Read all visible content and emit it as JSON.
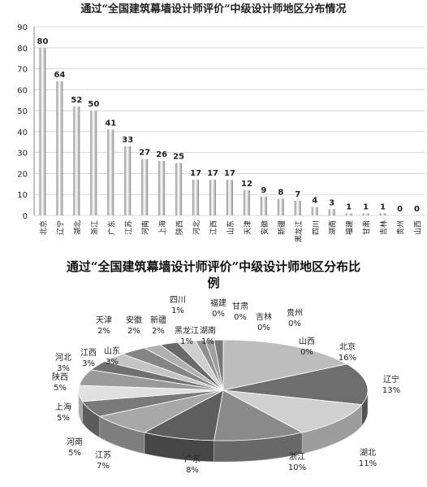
{
  "chart_data": [
    {
      "type": "bar",
      "title": "通过“全国建筑幕墙设计师评价”中级设计师地区分布情况",
      "categories": [
        "北京",
        "辽宁",
        "湖北",
        "浙江",
        "广东",
        "江苏",
        "河南",
        "上海",
        "陕西",
        "河北",
        "江西",
        "山东",
        "天津",
        "安徽",
        "新疆",
        "黑龙江",
        "四川",
        "湖南",
        "福建",
        "甘肃",
        "吉林",
        "贵州",
        "山西"
      ],
      "values": [
        80,
        64,
        52,
        50,
        41,
        33,
        27,
        26,
        25,
        17,
        17,
        17,
        12,
        9,
        8,
        7,
        4,
        3,
        1,
        1,
        1,
        0,
        0
      ],
      "color": "#8c8c8c",
      "ylim": [
        0,
        90
      ],
      "yticks": [
        0,
        10,
        20,
        30,
        40,
        50,
        60,
        70,
        80,
        90
      ],
      "grid": true
    },
    {
      "type": "pie",
      "title": "通过“全国建筑幕墙设计师评价”中级设计师地区分布比例",
      "categories": [
        "北京",
        "辽宁",
        "湖北",
        "浙江",
        "广东",
        "江苏",
        "河南",
        "上海",
        "陕西",
        "河北",
        "江西",
        "山东",
        "天津",
        "安徽",
        "新疆",
        "黑龙江",
        "四川",
        "湖南",
        "福建",
        "甘肃",
        "吉林",
        "贵州",
        "山西"
      ],
      "values": [
        16,
        13,
        11,
        10,
        8,
        7,
        5,
        5,
        5,
        3,
        3,
        3,
        2,
        2,
        2,
        1,
        1,
        1,
        0,
        0,
        0,
        0,
        0
      ],
      "value_labels": [
        "16%",
        "13%",
        "11%",
        "10%",
        "8%",
        "7%",
        "5%",
        "5%",
        "5%",
        "3%",
        "3%",
        "3%",
        "2%",
        "2%",
        "2%",
        "1%",
        "1%",
        "1%",
        "0%",
        "0%",
        "0%",
        "0%",
        "0%"
      ],
      "colors": [
        "#bdbdbd",
        "#6e6e6e",
        "#d0d0d0",
        "#8a8a8a",
        "#5e5e5e",
        "#a8a8a8",
        "#7a7a7a",
        "#e0e0e0",
        "#9a9a9a",
        "#707070",
        "#c4c4c4",
        "#858585",
        "#b0b0b0",
        "#6a6a6a",
        "#cfcfcf",
        "#909090",
        "#a0a0a0",
        "#787878",
        "#c8c8c8",
        "#888888",
        "#b8b8b8",
        "#989898",
        "#d8d8d8"
      ]
    }
  ]
}
